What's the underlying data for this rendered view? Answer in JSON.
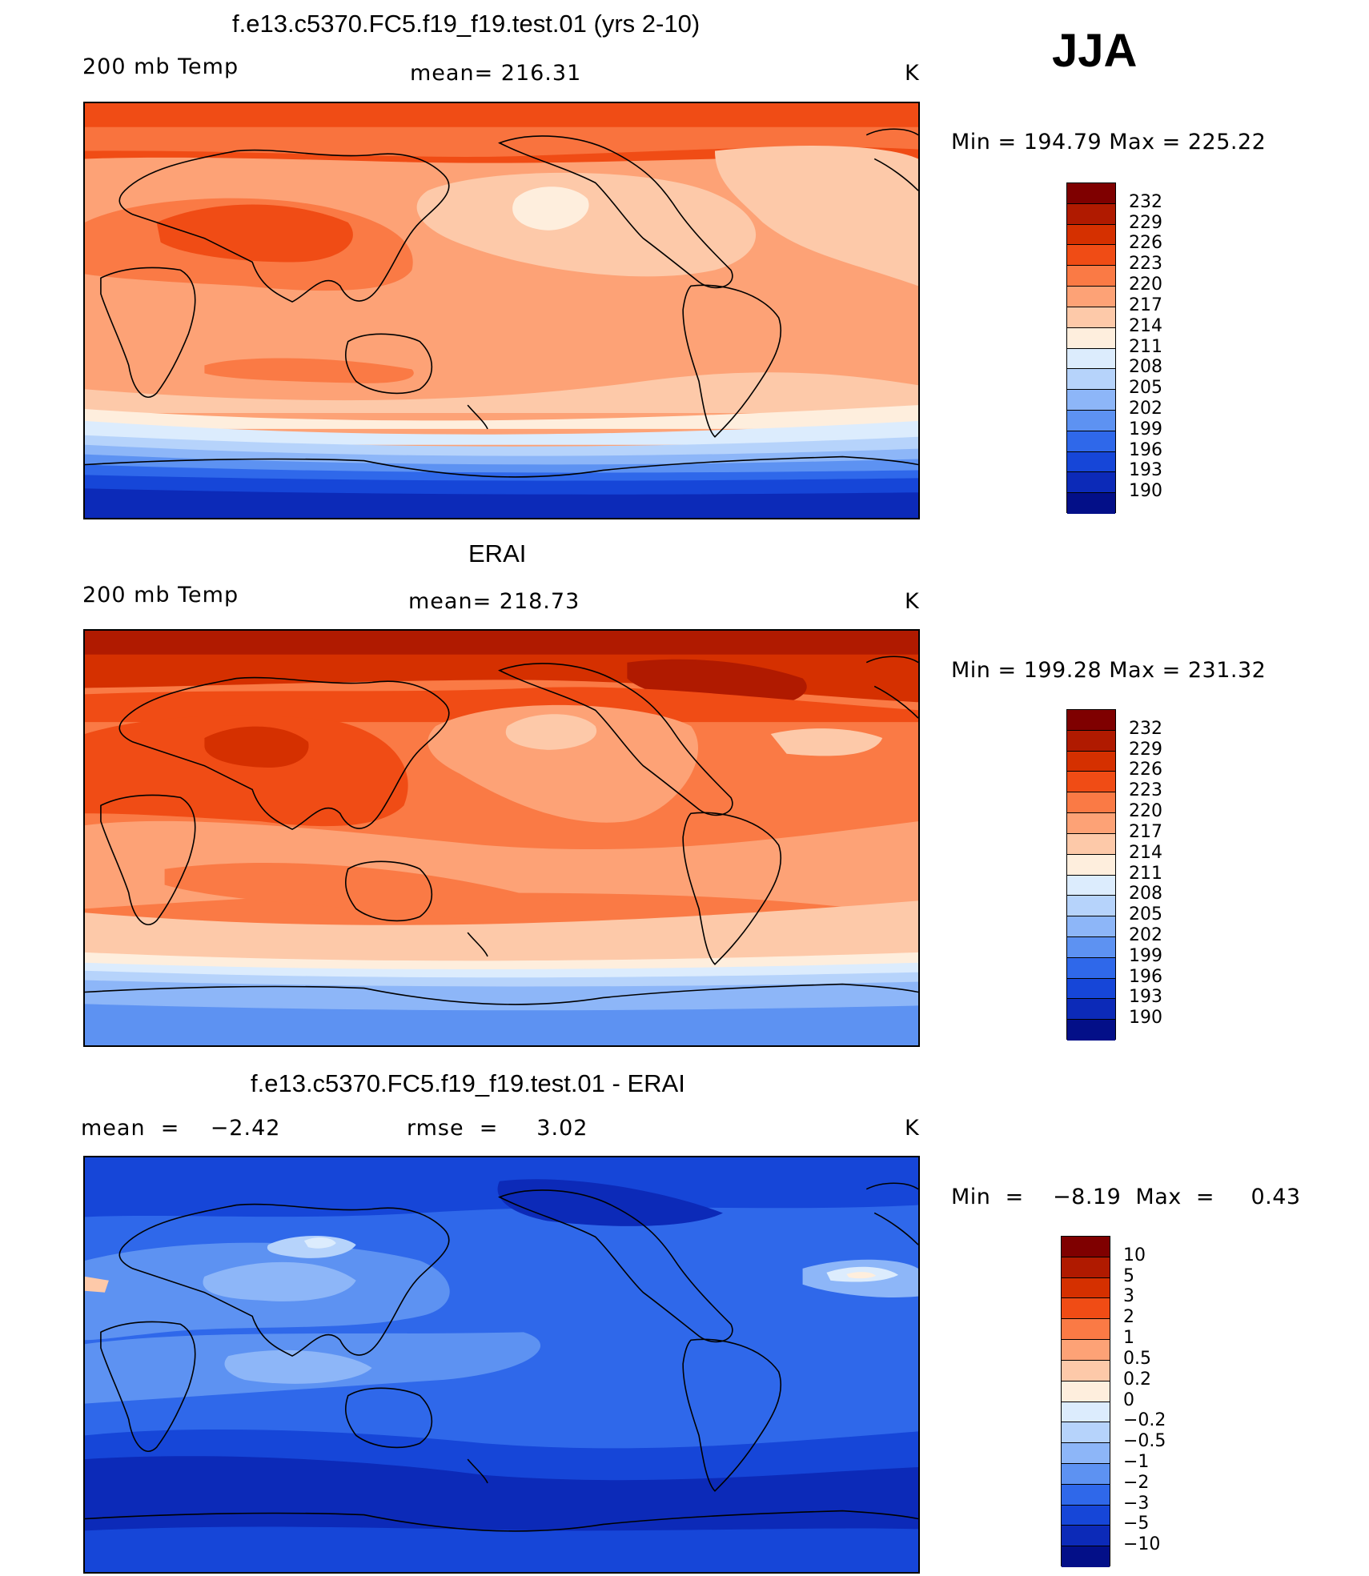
{
  "season": "JJA",
  "colors": {
    "abs_scale": [
      "#7f0000",
      "#b01a00",
      "#d53000",
      "#f04c15",
      "#fa7a45",
      "#fda276",
      "#fdc9a9",
      "#feeedd",
      "#dcecfd",
      "#b6d3fb",
      "#8db6f8",
      "#5d92f2",
      "#2f68ea",
      "#1646d8",
      "#0c2ab8",
      "#030f88"
    ],
    "diff_scale": [
      "#7f0000",
      "#b01a00",
      "#d53000",
      "#f04c15",
      "#fa7a45",
      "#fda276",
      "#fdc9a9",
      "#feeedd",
      "#dcecfd",
      "#b6d3fb",
      "#8db6f8",
      "#5d92f2",
      "#2f68ea",
      "#1646d8",
      "#0c2ab8",
      "#030f88"
    ]
  },
  "chart_data": [
    {
      "type": "heatmap",
      "title": "f.e13.c5370.FC5.f19_f19.test.01 (yrs 2-10)",
      "variable": "200 mb Temp",
      "mean_text": "mean= 216.31",
      "units": "K",
      "minmax_text": "Min  =  194.79  Max  =  225.22",
      "colorbar_levels": [
        "232",
        "229",
        "226",
        "223",
        "220",
        "217",
        "214",
        "211",
        "208",
        "205",
        "202",
        "199",
        "196",
        "193",
        "190"
      ]
    },
    {
      "type": "heatmap",
      "title": "ERAI",
      "variable": "200 mb Temp",
      "mean_text": "mean= 218.73",
      "units": "K",
      "minmax_text": "Min  =  199.28  Max  =  231.32",
      "colorbar_levels": [
        "232",
        "229",
        "226",
        "223",
        "220",
        "217",
        "214",
        "211",
        "208",
        "205",
        "202",
        "199",
        "196",
        "193",
        "190"
      ]
    },
    {
      "type": "heatmap",
      "title": "f.e13.c5370.FC5.f19_f19.test.01 - ERAI",
      "mean_text": "mean  =    −2.42",
      "rmse_text": "rmse  =     3.02",
      "units": "K",
      "minmax_text": "Min  =    −8.19  Max  =     0.43",
      "colorbar_levels": [
        "10",
        "5",
        "3",
        "2",
        "1",
        "0.5",
        "0.2",
        "0",
        "−0.2",
        "−0.5",
        "−1",
        "−2",
        "−3",
        "−5",
        "−10"
      ]
    }
  ]
}
